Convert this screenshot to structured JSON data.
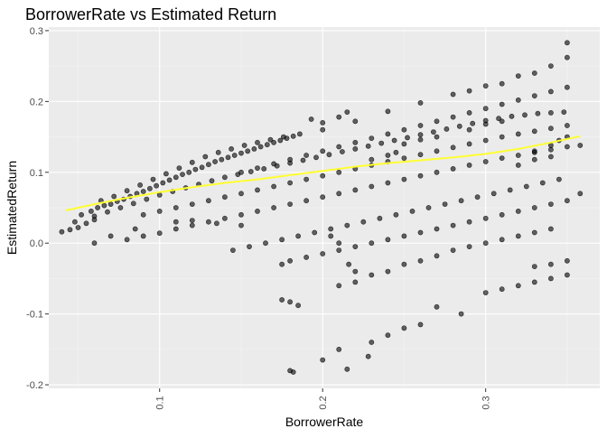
{
  "chart_data": {
    "type": "scatter",
    "title": "BorrowerRate vs Estimated Return",
    "xlabel": "BorrowerRate",
    "ylabel": "EstimatedReturn",
    "xlim": [
      0.032,
      0.37
    ],
    "ylim": [
      -0.205,
      0.305
    ],
    "xticks": [
      0.1,
      0.2,
      0.3
    ],
    "xtick_labels": [
      "0.1",
      "0.2",
      "0.3"
    ],
    "yticks": [
      -0.2,
      -0.1,
      0.0,
      0.1,
      0.2,
      0.3
    ],
    "ytick_labels": [
      "-0.2",
      "-0.1",
      "0.0",
      "0.1",
      "0.2",
      "0.3"
    ],
    "grid": true,
    "colors": {
      "panel_background": "#ebebeb",
      "grid_major": "#ffffff",
      "grid_minor": "#f5f5f5",
      "point": "#000000",
      "trend_line": "#ffff33",
      "axis_text": "#4d4d4d",
      "title_text": "#000000"
    },
    "points": [
      [
        0.04,
        0.016
      ],
      [
        0.045,
        0.019
      ],
      [
        0.05,
        0.022
      ],
      [
        0.055,
        0.028
      ],
      [
        0.06,
        0.033
      ],
      [
        0.048,
        0.03
      ],
      [
        0.052,
        0.04
      ],
      [
        0.058,
        0.045
      ],
      [
        0.062,
        0.05
      ],
      [
        0.066,
        0.053
      ],
      [
        0.07,
        0.055
      ],
      [
        0.074,
        0.059
      ],
      [
        0.078,
        0.062
      ],
      [
        0.082,
        0.066
      ],
      [
        0.086,
        0.07
      ],
      [
        0.09,
        0.073
      ],
      [
        0.094,
        0.077
      ],
      [
        0.098,
        0.081
      ],
      [
        0.102,
        0.085
      ],
      [
        0.106,
        0.089
      ],
      [
        0.11,
        0.093
      ],
      [
        0.114,
        0.097
      ],
      [
        0.118,
        0.1
      ],
      [
        0.122,
        0.104
      ],
      [
        0.126,
        0.107
      ],
      [
        0.13,
        0.111
      ],
      [
        0.134,
        0.115
      ],
      [
        0.138,
        0.118
      ],
      [
        0.142,
        0.121
      ],
      [
        0.146,
        0.124
      ],
      [
        0.15,
        0.127
      ],
      [
        0.154,
        0.13
      ],
      [
        0.158,
        0.133
      ],
      [
        0.162,
        0.136
      ],
      [
        0.166,
        0.139
      ],
      [
        0.17,
        0.142
      ],
      [
        0.174,
        0.145
      ],
      [
        0.178,
        0.148
      ],
      [
        0.182,
        0.151
      ],
      [
        0.186,
        0.154
      ],
      [
        0.064,
        0.06
      ],
      [
        0.072,
        0.066
      ],
      [
        0.08,
        0.074
      ],
      [
        0.088,
        0.082
      ],
      [
        0.096,
        0.09
      ],
      [
        0.104,
        0.098
      ],
      [
        0.112,
        0.106
      ],
      [
        0.12,
        0.114
      ],
      [
        0.128,
        0.122
      ],
      [
        0.136,
        0.128
      ],
      [
        0.144,
        0.133
      ],
      [
        0.152,
        0.138
      ],
      [
        0.16,
        0.142
      ],
      [
        0.168,
        0.146
      ],
      [
        0.176,
        0.15
      ],
      [
        0.06,
        0.038
      ],
      [
        0.068,
        0.044
      ],
      [
        0.076,
        0.05
      ],
      [
        0.084,
        0.056
      ],
      [
        0.092,
        0.062
      ],
      [
        0.1,
        0.068
      ],
      [
        0.108,
        0.073
      ],
      [
        0.116,
        0.078
      ],
      [
        0.124,
        0.083
      ],
      [
        0.132,
        0.088
      ],
      [
        0.14,
        0.093
      ],
      [
        0.148,
        0.097
      ],
      [
        0.156,
        0.101
      ],
      [
        0.164,
        0.105
      ],
      [
        0.172,
        0.109
      ],
      [
        0.18,
        0.113
      ],
      [
        0.188,
        0.117
      ],
      [
        0.196,
        0.121
      ],
      [
        0.204,
        0.125
      ],
      [
        0.212,
        0.129
      ],
      [
        0.22,
        0.133
      ],
      [
        0.228,
        0.137
      ],
      [
        0.236,
        0.141
      ],
      [
        0.244,
        0.145
      ],
      [
        0.252,
        0.149
      ],
      [
        0.26,
        0.153
      ],
      [
        0.268,
        0.157
      ],
      [
        0.276,
        0.161
      ],
      [
        0.284,
        0.165
      ],
      [
        0.292,
        0.169
      ],
      [
        0.3,
        0.173
      ],
      [
        0.308,
        0.176
      ],
      [
        0.316,
        0.179
      ],
      [
        0.324,
        0.181
      ],
      [
        0.332,
        0.183
      ],
      [
        0.34,
        0.184
      ],
      [
        0.348,
        0.185
      ],
      [
        0.15,
        0.1
      ],
      [
        0.16,
        0.106
      ],
      [
        0.17,
        0.112
      ],
      [
        0.18,
        0.118
      ],
      [
        0.19,
        0.124
      ],
      [
        0.2,
        0.13
      ],
      [
        0.21,
        0.136
      ],
      [
        0.22,
        0.142
      ],
      [
        0.23,
        0.148
      ],
      [
        0.24,
        0.154
      ],
      [
        0.25,
        0.16
      ],
      [
        0.26,
        0.166
      ],
      [
        0.27,
        0.172
      ],
      [
        0.28,
        0.178
      ],
      [
        0.29,
        0.184
      ],
      [
        0.3,
        0.19
      ],
      [
        0.31,
        0.196
      ],
      [
        0.32,
        0.202
      ],
      [
        0.33,
        0.208
      ],
      [
        0.34,
        0.214
      ],
      [
        0.35,
        0.22
      ],
      [
        0.2,
        0.16
      ],
      [
        0.22,
        0.172
      ],
      [
        0.24,
        0.186
      ],
      [
        0.26,
        0.198
      ],
      [
        0.28,
        0.21
      ],
      [
        0.3,
        0.222
      ],
      [
        0.32,
        0.236
      ],
      [
        0.34,
        0.25
      ],
      [
        0.35,
        0.262
      ],
      [
        0.35,
        0.283
      ],
      [
        0.33,
        0.24
      ],
      [
        0.31,
        0.225
      ],
      [
        0.29,
        0.215
      ],
      [
        0.09,
        0.04
      ],
      [
        0.1,
        0.045
      ],
      [
        0.11,
        0.05
      ],
      [
        0.12,
        0.055
      ],
      [
        0.13,
        0.06
      ],
      [
        0.14,
        0.065
      ],
      [
        0.15,
        0.07
      ],
      [
        0.16,
        0.075
      ],
      [
        0.17,
        0.08
      ],
      [
        0.18,
        0.085
      ],
      [
        0.19,
        0.09
      ],
      [
        0.2,
        0.095
      ],
      [
        0.21,
        0.1
      ],
      [
        0.22,
        0.105
      ],
      [
        0.23,
        0.11
      ],
      [
        0.24,
        0.115
      ],
      [
        0.25,
        0.12
      ],
      [
        0.26,
        0.125
      ],
      [
        0.27,
        0.13
      ],
      [
        0.28,
        0.135
      ],
      [
        0.29,
        0.14
      ],
      [
        0.3,
        0.145
      ],
      [
        0.31,
        0.15
      ],
      [
        0.32,
        0.154
      ],
      [
        0.33,
        0.158
      ],
      [
        0.34,
        0.162
      ],
      [
        0.35,
        0.166
      ],
      [
        0.358,
        0.138
      ],
      [
        0.08,
        0.005
      ],
      [
        0.09,
        0.01
      ],
      [
        0.1,
        0.014
      ],
      [
        0.11,
        0.02
      ],
      [
        0.12,
        0.025
      ],
      [
        0.13,
        0.03
      ],
      [
        0.14,
        0.035
      ],
      [
        0.15,
        0.04
      ],
      [
        0.16,
        0.045
      ],
      [
        0.17,
        0.05
      ],
      [
        0.18,
        0.055
      ],
      [
        0.19,
        0.06
      ],
      [
        0.2,
        0.065
      ],
      [
        0.21,
        0.07
      ],
      [
        0.22,
        0.075
      ],
      [
        0.23,
        0.08
      ],
      [
        0.24,
        0.085
      ],
      [
        0.25,
        0.09
      ],
      [
        0.26,
        0.095
      ],
      [
        0.27,
        0.1
      ],
      [
        0.28,
        0.105
      ],
      [
        0.29,
        0.11
      ],
      [
        0.3,
        0.115
      ],
      [
        0.31,
        0.12
      ],
      [
        0.32,
        0.124
      ],
      [
        0.33,
        0.128
      ],
      [
        0.34,
        0.132
      ],
      [
        0.35,
        0.136
      ],
      [
        0.145,
        -0.01
      ],
      [
        0.155,
        -0.005
      ],
      [
        0.165,
        0.0
      ],
      [
        0.175,
        0.005
      ],
      [
        0.185,
        0.01
      ],
      [
        0.195,
        0.015
      ],
      [
        0.205,
        0.02
      ],
      [
        0.215,
        0.025
      ],
      [
        0.225,
        0.03
      ],
      [
        0.235,
        0.035
      ],
      [
        0.245,
        0.04
      ],
      [
        0.255,
        0.045
      ],
      [
        0.265,
        0.05
      ],
      [
        0.275,
        0.055
      ],
      [
        0.285,
        0.06
      ],
      [
        0.295,
        0.065
      ],
      [
        0.305,
        0.07
      ],
      [
        0.315,
        0.075
      ],
      [
        0.325,
        0.08
      ],
      [
        0.335,
        0.085
      ],
      [
        0.345,
        0.09
      ],
      [
        0.358,
        0.07
      ],
      [
        0.175,
        -0.03
      ],
      [
        0.18,
        -0.025
      ],
      [
        0.19,
        -0.02
      ],
      [
        0.2,
        -0.015
      ],
      [
        0.21,
        -0.01
      ],
      [
        0.22,
        -0.005
      ],
      [
        0.23,
        0.0
      ],
      [
        0.24,
        0.005
      ],
      [
        0.25,
        0.01
      ],
      [
        0.26,
        0.015
      ],
      [
        0.27,
        0.02
      ],
      [
        0.28,
        0.025
      ],
      [
        0.29,
        0.03
      ],
      [
        0.3,
        0.035
      ],
      [
        0.31,
        0.04
      ],
      [
        0.32,
        0.045
      ],
      [
        0.33,
        0.05
      ],
      [
        0.34,
        0.055
      ],
      [
        0.35,
        0.06
      ],
      [
        0.21,
        -0.06
      ],
      [
        0.22,
        -0.055
      ],
      [
        0.23,
        -0.045
      ],
      [
        0.24,
        -0.04
      ],
      [
        0.25,
        -0.03
      ],
      [
        0.26,
        -0.025
      ],
      [
        0.27,
        -0.018
      ],
      [
        0.28,
        -0.01
      ],
      [
        0.29,
        -0.005
      ],
      [
        0.3,
        0.0
      ],
      [
        0.31,
        0.005
      ],
      [
        0.32,
        0.01
      ],
      [
        0.33,
        0.015
      ],
      [
        0.34,
        0.02
      ],
      [
        0.175,
        -0.08
      ],
      [
        0.18,
        -0.083
      ],
      [
        0.185,
        -0.088
      ],
      [
        0.27,
        -0.09
      ],
      [
        0.285,
        -0.1
      ],
      [
        0.3,
        -0.07
      ],
      [
        0.31,
        -0.065
      ],
      [
        0.32,
        -0.06
      ],
      [
        0.33,
        -0.055
      ],
      [
        0.34,
        -0.05
      ],
      [
        0.35,
        -0.045
      ],
      [
        0.35,
        -0.025
      ],
      [
        0.34,
        -0.03
      ],
      [
        0.33,
        -0.033
      ],
      [
        0.23,
        -0.14
      ],
      [
        0.24,
        -0.13
      ],
      [
        0.25,
        -0.12
      ],
      [
        0.26,
        -0.115
      ],
      [
        0.2,
        -0.165
      ],
      [
        0.21,
        -0.15
      ],
      [
        0.215,
        -0.178
      ],
      [
        0.228,
        -0.16
      ],
      [
        0.18,
        -0.18
      ],
      [
        0.182,
        -0.182
      ],
      [
        0.205,
        0.01
      ],
      [
        0.21,
        0.0
      ],
      [
        0.216,
        -0.03
      ],
      [
        0.22,
        -0.04
      ],
      [
        0.193,
        0.175
      ],
      [
        0.2,
        0.17
      ],
      [
        0.21,
        0.178
      ],
      [
        0.215,
        0.185
      ],
      [
        0.11,
        0.03
      ],
      [
        0.12,
        0.032
      ],
      [
        0.135,
        0.028
      ],
      [
        0.15,
        0.025
      ],
      [
        0.06,
        0.0
      ],
      [
        0.07,
        0.01
      ],
      [
        0.085,
        0.02
      ],
      [
        0.33,
        0.13
      ],
      [
        0.34,
        0.138
      ],
      [
        0.345,
        0.145
      ],
      [
        0.35,
        0.15
      ],
      [
        0.32,
        0.11
      ],
      [
        0.33,
        0.118
      ],
      [
        0.34,
        0.122
      ],
      [
        0.29,
        0.16
      ],
      [
        0.3,
        0.168
      ],
      [
        0.31,
        0.172
      ],
      [
        0.25,
        0.14
      ],
      [
        0.26,
        0.146
      ],
      [
        0.27,
        0.15
      ],
      [
        0.23,
        0.118
      ],
      [
        0.24,
        0.124
      ],
      [
        0.245,
        0.128
      ]
    ],
    "trend_line": [
      [
        0.042,
        0.046
      ],
      [
        0.06,
        0.055
      ],
      [
        0.08,
        0.064
      ],
      [
        0.1,
        0.072
      ],
      [
        0.12,
        0.079
      ],
      [
        0.14,
        0.085
      ],
      [
        0.16,
        0.09
      ],
      [
        0.18,
        0.096
      ],
      [
        0.2,
        0.102
      ],
      [
        0.22,
        0.108
      ],
      [
        0.24,
        0.113
      ],
      [
        0.26,
        0.117
      ],
      [
        0.28,
        0.121
      ],
      [
        0.3,
        0.126
      ],
      [
        0.32,
        0.133
      ],
      [
        0.34,
        0.142
      ],
      [
        0.358,
        0.151
      ]
    ]
  }
}
